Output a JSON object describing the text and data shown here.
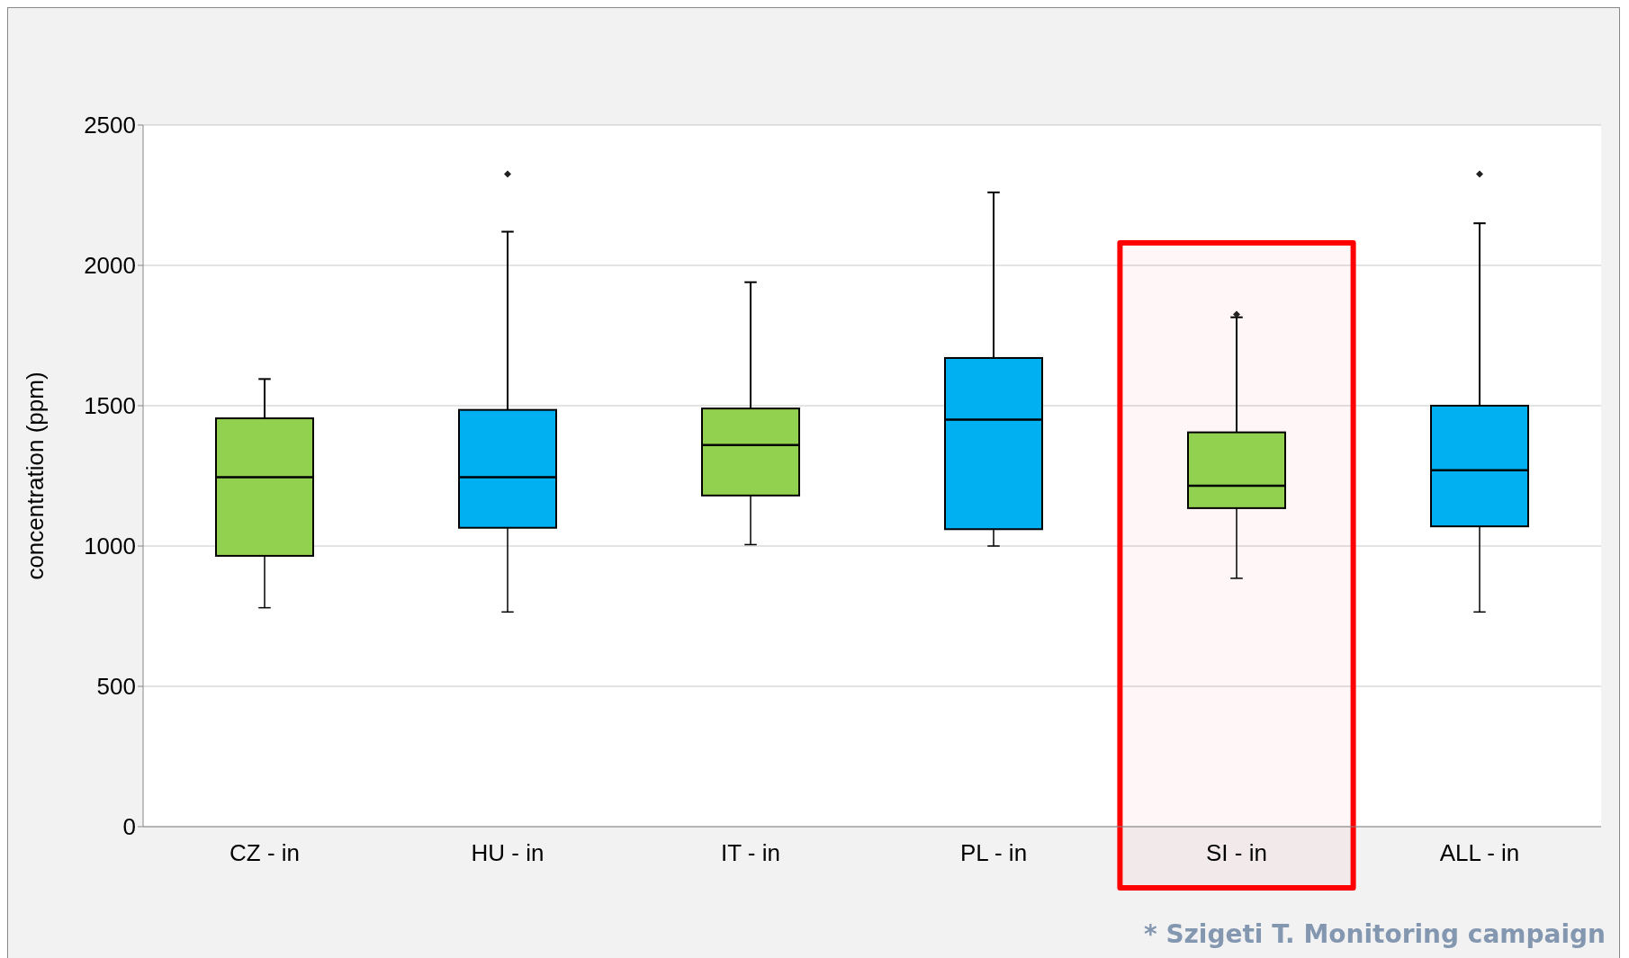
{
  "chart_data": {
    "type": "box",
    "ylabel": "concentration (ppm)",
    "categories": [
      "CZ - in",
      "HU - in",
      "IT - in",
      "PL  - in",
      "SI - in",
      "ALL - in"
    ],
    "colors": [
      "#92d050",
      "#00b0f0",
      "#92d050",
      "#00b0f0",
      "#92d050",
      "#00b0f0"
    ],
    "boxes": [
      {
        "low": 780,
        "q1": 965,
        "median": 1245,
        "q3": 1455,
        "high": 1595
      },
      {
        "low": 765,
        "q1": 1065,
        "median": 1245,
        "q3": 1485,
        "high": 2120,
        "outliers": [
          2325
        ]
      },
      {
        "low": 1005,
        "q1": 1180,
        "median": 1360,
        "q3": 1490,
        "high": 1940
      },
      {
        "low": 1000,
        "q1": 1060,
        "median": 1450,
        "q3": 1670,
        "high": 2260
      },
      {
        "low": 885,
        "q1": 1135,
        "median": 1215,
        "q3": 1405,
        "high": 1815,
        "outliers": [
          1825
        ]
      },
      {
        "low": 765,
        "q1": 1070,
        "median": 1270,
        "q3": 1500,
        "high": 2150,
        "outliers": [
          2325
        ]
      }
    ],
    "ylim": [
      0,
      2500
    ],
    "yticks": [
      0,
      500,
      1000,
      1500,
      2000,
      2500
    ],
    "grid": "y",
    "bands": [
      {
        "axis": "x",
        "from": "SI - in",
        "to": "SI - in",
        "color": "#ff0000"
      }
    ],
    "annotations": [
      "* Szigeti T. Monitoring campaign"
    ]
  }
}
